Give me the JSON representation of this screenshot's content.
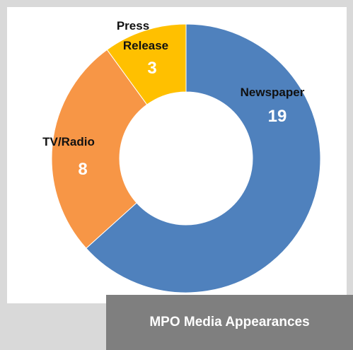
{
  "caption": "MPO Media Appearances",
  "chart_data": {
    "type": "pie",
    "style": "donut",
    "categories": [
      "Newspaper",
      "TV/Radio",
      "Press Release"
    ],
    "values": [
      19,
      8,
      3
    ],
    "colors": [
      "#4f81bd",
      "#f79646",
      "#ffc000"
    ],
    "title": ""
  }
}
